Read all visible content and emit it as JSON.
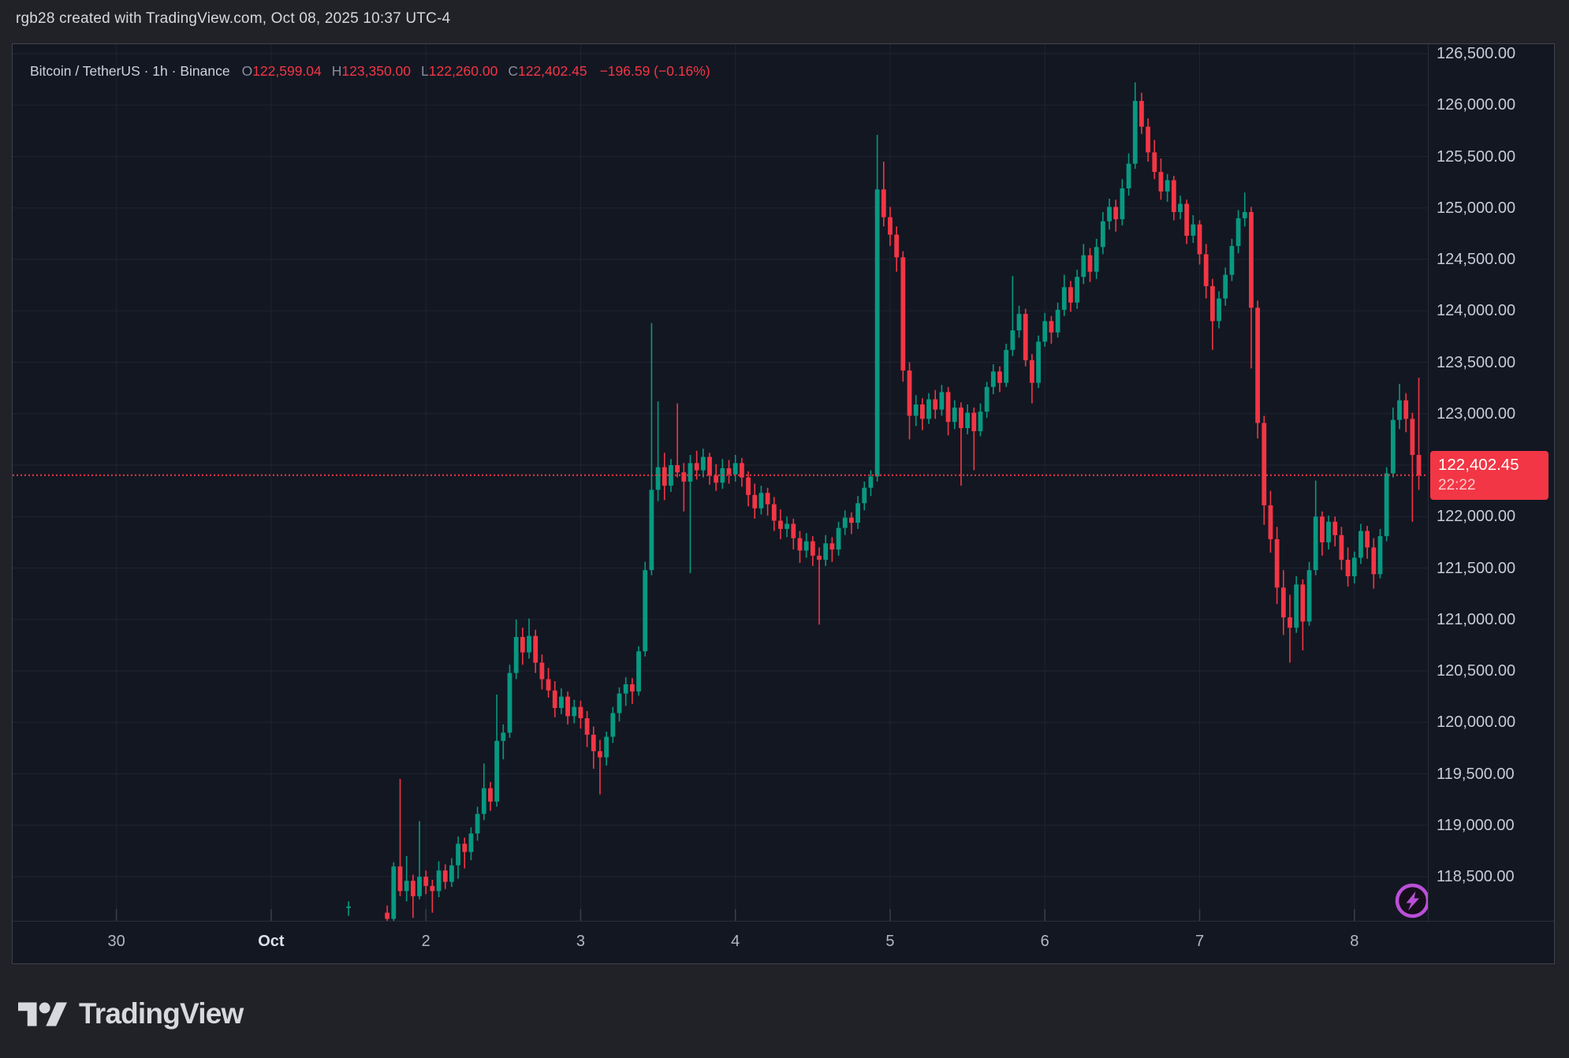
{
  "attribution": "rgb28 created with TradingView.com, Oct 08, 2025 10:37 UTC-4",
  "legend": {
    "symbol_text": "Bitcoin / TetherUS · 1h · Binance",
    "ohlc": [
      {
        "k": "O",
        "v": "122,599.04"
      },
      {
        "k": "H",
        "v": "123,350.00"
      },
      {
        "k": "L",
        "v": "122,260.00"
      },
      {
        "k": "C",
        "v": "122,402.45"
      }
    ],
    "change_text": "−196.59 (−0.16%)"
  },
  "footer": {
    "brand": "TradingView"
  },
  "colors": {
    "outer_bg": "#212227",
    "pane_bg": "#131722",
    "grid": "#1f2433",
    "up": "#089981",
    "down": "#f23645",
    "tick": "#3a3f4a",
    "axis_text": "#c6cbd8",
    "badge_bg": "#f23645",
    "badge_countdown": "#ffc9ce",
    "lightning_purple": "#b950d7",
    "logo_gray": "#d8d9dd"
  },
  "chart_data": {
    "type": "candlestick",
    "symbol": "Bitcoin / TetherUS",
    "interval": "1h",
    "exchange": "Binance",
    "grid": true,
    "legend_position": "top-left",
    "x_axis": {
      "unit": "hours since Oct 1 00:00",
      "range_hours": [
        -40.1,
        179.4
      ],
      "labels": [
        {
          "t": -24,
          "label": "30"
        },
        {
          "t": 0,
          "label": "Oct",
          "bold": true
        },
        {
          "t": 24,
          "label": "2"
        },
        {
          "t": 48,
          "label": "3"
        },
        {
          "t": 72,
          "label": "4"
        },
        {
          "t": 96,
          "label": "5"
        },
        {
          "t": 120,
          "label": "6"
        },
        {
          "t": 144,
          "label": "7"
        },
        {
          "t": 168,
          "label": "8"
        }
      ]
    },
    "y_axis": {
      "range": [
        118071,
        126592
      ],
      "ticks": [
        {
          "value": 126500,
          "label": "126,500.00"
        },
        {
          "value": 126000,
          "label": "126,000.00"
        },
        {
          "value": 125500,
          "label": "125,500.00"
        },
        {
          "value": 125000,
          "label": "125,000.00"
        },
        {
          "value": 124500,
          "label": "124,500.00"
        },
        {
          "value": 124000,
          "label": "124,000.00"
        },
        {
          "value": 123500,
          "label": "123,500.00"
        },
        {
          "value": 123000,
          "label": "123,000.00"
        },
        {
          "value": 122500,
          "label": "122,500.00"
        },
        {
          "value": 122000,
          "label": "122,000.00"
        },
        {
          "value": 121500,
          "label": "121,500.00"
        },
        {
          "value": 121000,
          "label": "121,000.00"
        },
        {
          "value": 120500,
          "label": "120,500.00"
        },
        {
          "value": 120000,
          "label": "120,000.00"
        },
        {
          "value": 119500,
          "label": "119,500.00"
        },
        {
          "value": 119000,
          "label": "119,000.00"
        },
        {
          "value": 118500,
          "label": "118,500.00"
        }
      ]
    },
    "last_price": {
      "value": 122402.45,
      "display": "122,402.45",
      "countdown": "22:22",
      "direction": "down"
    },
    "candles": [
      [
        12,
        118200,
        118260,
        118120,
        118210
      ],
      [
        18,
        118150,
        118220,
        118040,
        118090
      ],
      [
        19,
        118090,
        118640,
        118050,
        118600
      ],
      [
        20,
        118600,
        119450,
        118310,
        118360
      ],
      [
        21,
        118360,
        118700,
        118260,
        118460
      ],
      [
        22,
        118460,
        118520,
        118100,
        118310
      ],
      [
        23,
        118310,
        119040,
        118280,
        118500
      ],
      [
        24,
        118500,
        118560,
        118330,
        118410
      ],
      [
        25,
        118410,
        118470,
        118150,
        118360
      ],
      [
        26,
        118360,
        118650,
        118300,
        118560
      ],
      [
        27,
        118560,
        118620,
        118380,
        118450
      ],
      [
        28,
        118450,
        118680,
        118400,
        118610
      ],
      [
        29,
        118610,
        118890,
        118480,
        118820
      ],
      [
        30,
        118820,
        118880,
        118580,
        118740
      ],
      [
        31,
        118740,
        118980,
        118660,
        118920
      ],
      [
        32,
        118920,
        119180,
        118850,
        119110
      ],
      [
        33,
        119110,
        119600,
        119050,
        119360
      ],
      [
        34,
        119360,
        119420,
        119140,
        119230
      ],
      [
        35,
        119230,
        120270,
        119180,
        119820
      ],
      [
        36,
        119820,
        119980,
        119640,
        119900
      ],
      [
        37,
        119900,
        120560,
        119850,
        120480
      ],
      [
        38,
        120480,
        121000,
        120420,
        120830
      ],
      [
        39,
        120830,
        120920,
        120560,
        120680
      ],
      [
        40,
        120680,
        121010,
        120620,
        120840
      ],
      [
        41,
        120840,
        120900,
        120480,
        120580
      ],
      [
        42,
        120580,
        120660,
        120320,
        120420
      ],
      [
        43,
        120420,
        120530,
        120240,
        120310
      ],
      [
        44,
        120310,
        120400,
        120050,
        120140
      ],
      [
        45,
        120140,
        120330,
        120080,
        120250
      ],
      [
        46,
        120250,
        120300,
        119980,
        120060
      ],
      [
        47,
        120060,
        120220,
        119990,
        120150
      ],
      [
        48,
        120150,
        120210,
        119940,
        120040
      ],
      [
        49,
        120040,
        120110,
        119760,
        119880
      ],
      [
        50,
        119880,
        119960,
        119550,
        119720
      ],
      [
        51,
        119720,
        119830,
        119300,
        119660
      ],
      [
        52,
        119660,
        119910,
        119580,
        119860
      ],
      [
        53,
        119860,
        120150,
        119800,
        120090
      ],
      [
        54,
        120090,
        120340,
        120010,
        120280
      ],
      [
        55,
        120280,
        120440,
        120160,
        120370
      ],
      [
        56,
        120370,
        120430,
        120180,
        120300
      ],
      [
        57,
        120300,
        120740,
        120260,
        120690
      ],
      [
        58,
        120690,
        121560,
        120640,
        121480
      ],
      [
        59,
        121480,
        123880,
        121430,
        122260
      ],
      [
        60,
        122260,
        123120,
        122150,
        122480
      ],
      [
        61,
        122480,
        122620,
        122160,
        122300
      ],
      [
        62,
        122300,
        122560,
        122240,
        122500
      ],
      [
        63,
        122500,
        123100,
        122380,
        122430
      ],
      [
        64,
        122430,
        122520,
        122050,
        122340
      ],
      [
        65,
        122340,
        122600,
        121450,
        122520
      ],
      [
        66,
        122520,
        122640,
        122360,
        122450
      ],
      [
        67,
        122450,
        122660,
        122380,
        122580
      ],
      [
        68,
        122580,
        122620,
        122310,
        122400
      ],
      [
        69,
        122400,
        122510,
        122250,
        122330
      ],
      [
        70,
        122330,
        122560,
        122270,
        122470
      ],
      [
        71,
        122470,
        122550,
        122320,
        122410
      ],
      [
        72,
        122410,
        122600,
        122340,
        122520
      ],
      [
        73,
        122520,
        122570,
        122290,
        122380
      ],
      [
        74,
        122380,
        122440,
        122100,
        122210
      ],
      [
        75,
        122210,
        122320,
        121980,
        122080
      ],
      [
        76,
        122080,
        122300,
        122020,
        122230
      ],
      [
        77,
        122230,
        122280,
        122010,
        122120
      ],
      [
        78,
        122120,
        122190,
        121860,
        121960
      ],
      [
        79,
        121960,
        122070,
        121780,
        121880
      ],
      [
        80,
        121880,
        122000,
        121800,
        121930
      ],
      [
        81,
        121930,
        121980,
        121680,
        121790
      ],
      [
        82,
        121790,
        121860,
        121550,
        121670
      ],
      [
        83,
        121670,
        121840,
        121600,
        121760
      ],
      [
        84,
        121760,
        121810,
        121520,
        121620
      ],
      [
        85,
        121620,
        121700,
        120950,
        121580
      ],
      [
        86,
        121580,
        121820,
        121520,
        121740
      ],
      [
        87,
        121740,
        121800,
        121560,
        121680
      ],
      [
        88,
        121680,
        121950,
        121620,
        121890
      ],
      [
        89,
        121890,
        122060,
        121820,
        121990
      ],
      [
        90,
        121990,
        122040,
        121830,
        121940
      ],
      [
        91,
        121940,
        122200,
        121880,
        122130
      ],
      [
        92,
        122130,
        122340,
        122060,
        122280
      ],
      [
        93,
        122280,
        122450,
        122200,
        122390
      ],
      [
        94,
        122390,
        125710,
        122340,
        125180
      ],
      [
        95,
        125180,
        125450,
        124820,
        124910
      ],
      [
        96,
        124910,
        125010,
        124630,
        124740
      ],
      [
        97,
        124740,
        124820,
        124380,
        124520
      ],
      [
        98,
        124520,
        124580,
        123310,
        123420
      ],
      [
        99,
        123420,
        123500,
        122750,
        122980
      ],
      [
        100,
        122980,
        123180,
        122880,
        123090
      ],
      [
        101,
        123090,
        123150,
        122840,
        122950
      ],
      [
        102,
        122950,
        123200,
        122900,
        123140
      ],
      [
        103,
        123140,
        123230,
        122950,
        123040
      ],
      [
        104,
        123040,
        123280,
        122980,
        123210
      ],
      [
        105,
        123210,
        123260,
        122790,
        122920
      ],
      [
        106,
        122920,
        123130,
        122850,
        123060
      ],
      [
        107,
        123060,
        123110,
        122300,
        122860
      ],
      [
        108,
        122860,
        123090,
        122800,
        123010
      ],
      [
        109,
        123010,
        123060,
        122450,
        122830
      ],
      [
        110,
        122830,
        123100,
        122780,
        123020
      ],
      [
        111,
        123020,
        123310,
        122960,
        123260
      ],
      [
        112,
        123260,
        123480,
        123190,
        123410
      ],
      [
        113,
        123410,
        123460,
        123210,
        123300
      ],
      [
        114,
        123300,
        123680,
        123260,
        123620
      ],
      [
        115,
        123620,
        124340,
        123560,
        123810
      ],
      [
        116,
        123810,
        124050,
        123740,
        123970
      ],
      [
        117,
        123970,
        124020,
        123460,
        123520
      ],
      [
        118,
        123520,
        123580,
        123100,
        123300
      ],
      [
        119,
        123300,
        123760,
        123250,
        123700
      ],
      [
        120,
        123700,
        123980,
        123650,
        123900
      ],
      [
        121,
        123900,
        123950,
        123680,
        123790
      ],
      [
        122,
        123790,
        124080,
        123740,
        124010
      ],
      [
        123,
        124010,
        124350,
        123950,
        124230
      ],
      [
        124,
        124230,
        124290,
        123990,
        124080
      ],
      [
        125,
        124080,
        124400,
        124020,
        124330
      ],
      [
        126,
        124330,
        124650,
        124260,
        124540
      ],
      [
        127,
        124540,
        124610,
        124280,
        124380
      ],
      [
        128,
        124380,
        124700,
        124310,
        124620
      ],
      [
        129,
        124620,
        124960,
        124550,
        124870
      ],
      [
        130,
        124870,
        125090,
        124790,
        125010
      ],
      [
        131,
        125010,
        125080,
        124770,
        124890
      ],
      [
        132,
        124890,
        125280,
        124830,
        125190
      ],
      [
        133,
        125190,
        125530,
        125120,
        125430
      ],
      [
        134,
        125430,
        126220,
        125380,
        126040
      ],
      [
        135,
        126040,
        126120,
        125720,
        125790
      ],
      [
        136,
        125790,
        125870,
        125450,
        125540
      ],
      [
        137,
        125540,
        125660,
        125280,
        125350
      ],
      [
        138,
        125350,
        125480,
        125080,
        125160
      ],
      [
        139,
        125160,
        125330,
        125060,
        125270
      ],
      [
        140,
        125270,
        125310,
        124880,
        124960
      ],
      [
        141,
        124960,
        125120,
        124890,
        125040
      ],
      [
        142,
        125040,
        125080,
        124650,
        124730
      ],
      [
        143,
        124730,
        124930,
        124660,
        124840
      ],
      [
        144,
        124840,
        124880,
        124450,
        124550
      ],
      [
        145,
        124550,
        124650,
        124120,
        124240
      ],
      [
        146,
        124240,
        124310,
        123620,
        123900
      ],
      [
        147,
        123900,
        124190,
        123830,
        124120
      ],
      [
        148,
        124120,
        124420,
        124050,
        124350
      ],
      [
        149,
        124350,
        124700,
        124290,
        124630
      ],
      [
        150,
        124630,
        124980,
        124560,
        124900
      ],
      [
        151,
        124900,
        125150,
        124820,
        124960
      ],
      [
        152,
        124960,
        125010,
        123440,
        124030
      ],
      [
        153,
        124030,
        124100,
        122760,
        122910
      ],
      [
        154,
        122910,
        122980,
        121920,
        122110
      ],
      [
        155,
        122110,
        122250,
        121650,
        121780
      ],
      [
        156,
        121780,
        121900,
        121150,
        121310
      ],
      [
        157,
        121310,
        121480,
        120850,
        121020
      ],
      [
        158,
        121020,
        121240,
        120580,
        120920
      ],
      [
        159,
        120920,
        121420,
        120870,
        121340
      ],
      [
        160,
        121340,
        121390,
        120700,
        120980
      ],
      [
        161,
        120980,
        121560,
        120940,
        121480
      ],
      [
        162,
        121480,
        122350,
        121430,
        122000
      ],
      [
        163,
        122000,
        122050,
        121620,
        121750
      ],
      [
        164,
        121750,
        122010,
        121680,
        121950
      ],
      [
        165,
        121950,
        122000,
        121710,
        121820
      ],
      [
        166,
        121820,
        121900,
        121480,
        121580
      ],
      [
        167,
        121580,
        121700,
        121320,
        121420
      ],
      [
        168,
        121420,
        121660,
        121350,
        121600
      ],
      [
        169,
        121600,
        121930,
        121540,
        121860
      ],
      [
        170,
        121860,
        121910,
        121590,
        121700
      ],
      [
        171,
        121700,
        121790,
        121300,
        121440
      ],
      [
        172,
        121440,
        121880,
        121400,
        121810
      ],
      [
        173,
        121810,
        122480,
        121760,
        122420
      ],
      [
        174,
        122420,
        123060,
        122380,
        122940
      ],
      [
        175,
        122940,
        123290,
        122850,
        123130
      ],
      [
        176,
        123130,
        123200,
        122820,
        122950
      ],
      [
        177,
        122950,
        123010,
        121950,
        122599
      ],
      [
        178,
        122599.04,
        123350,
        122260,
        122402.45
      ]
    ]
  }
}
